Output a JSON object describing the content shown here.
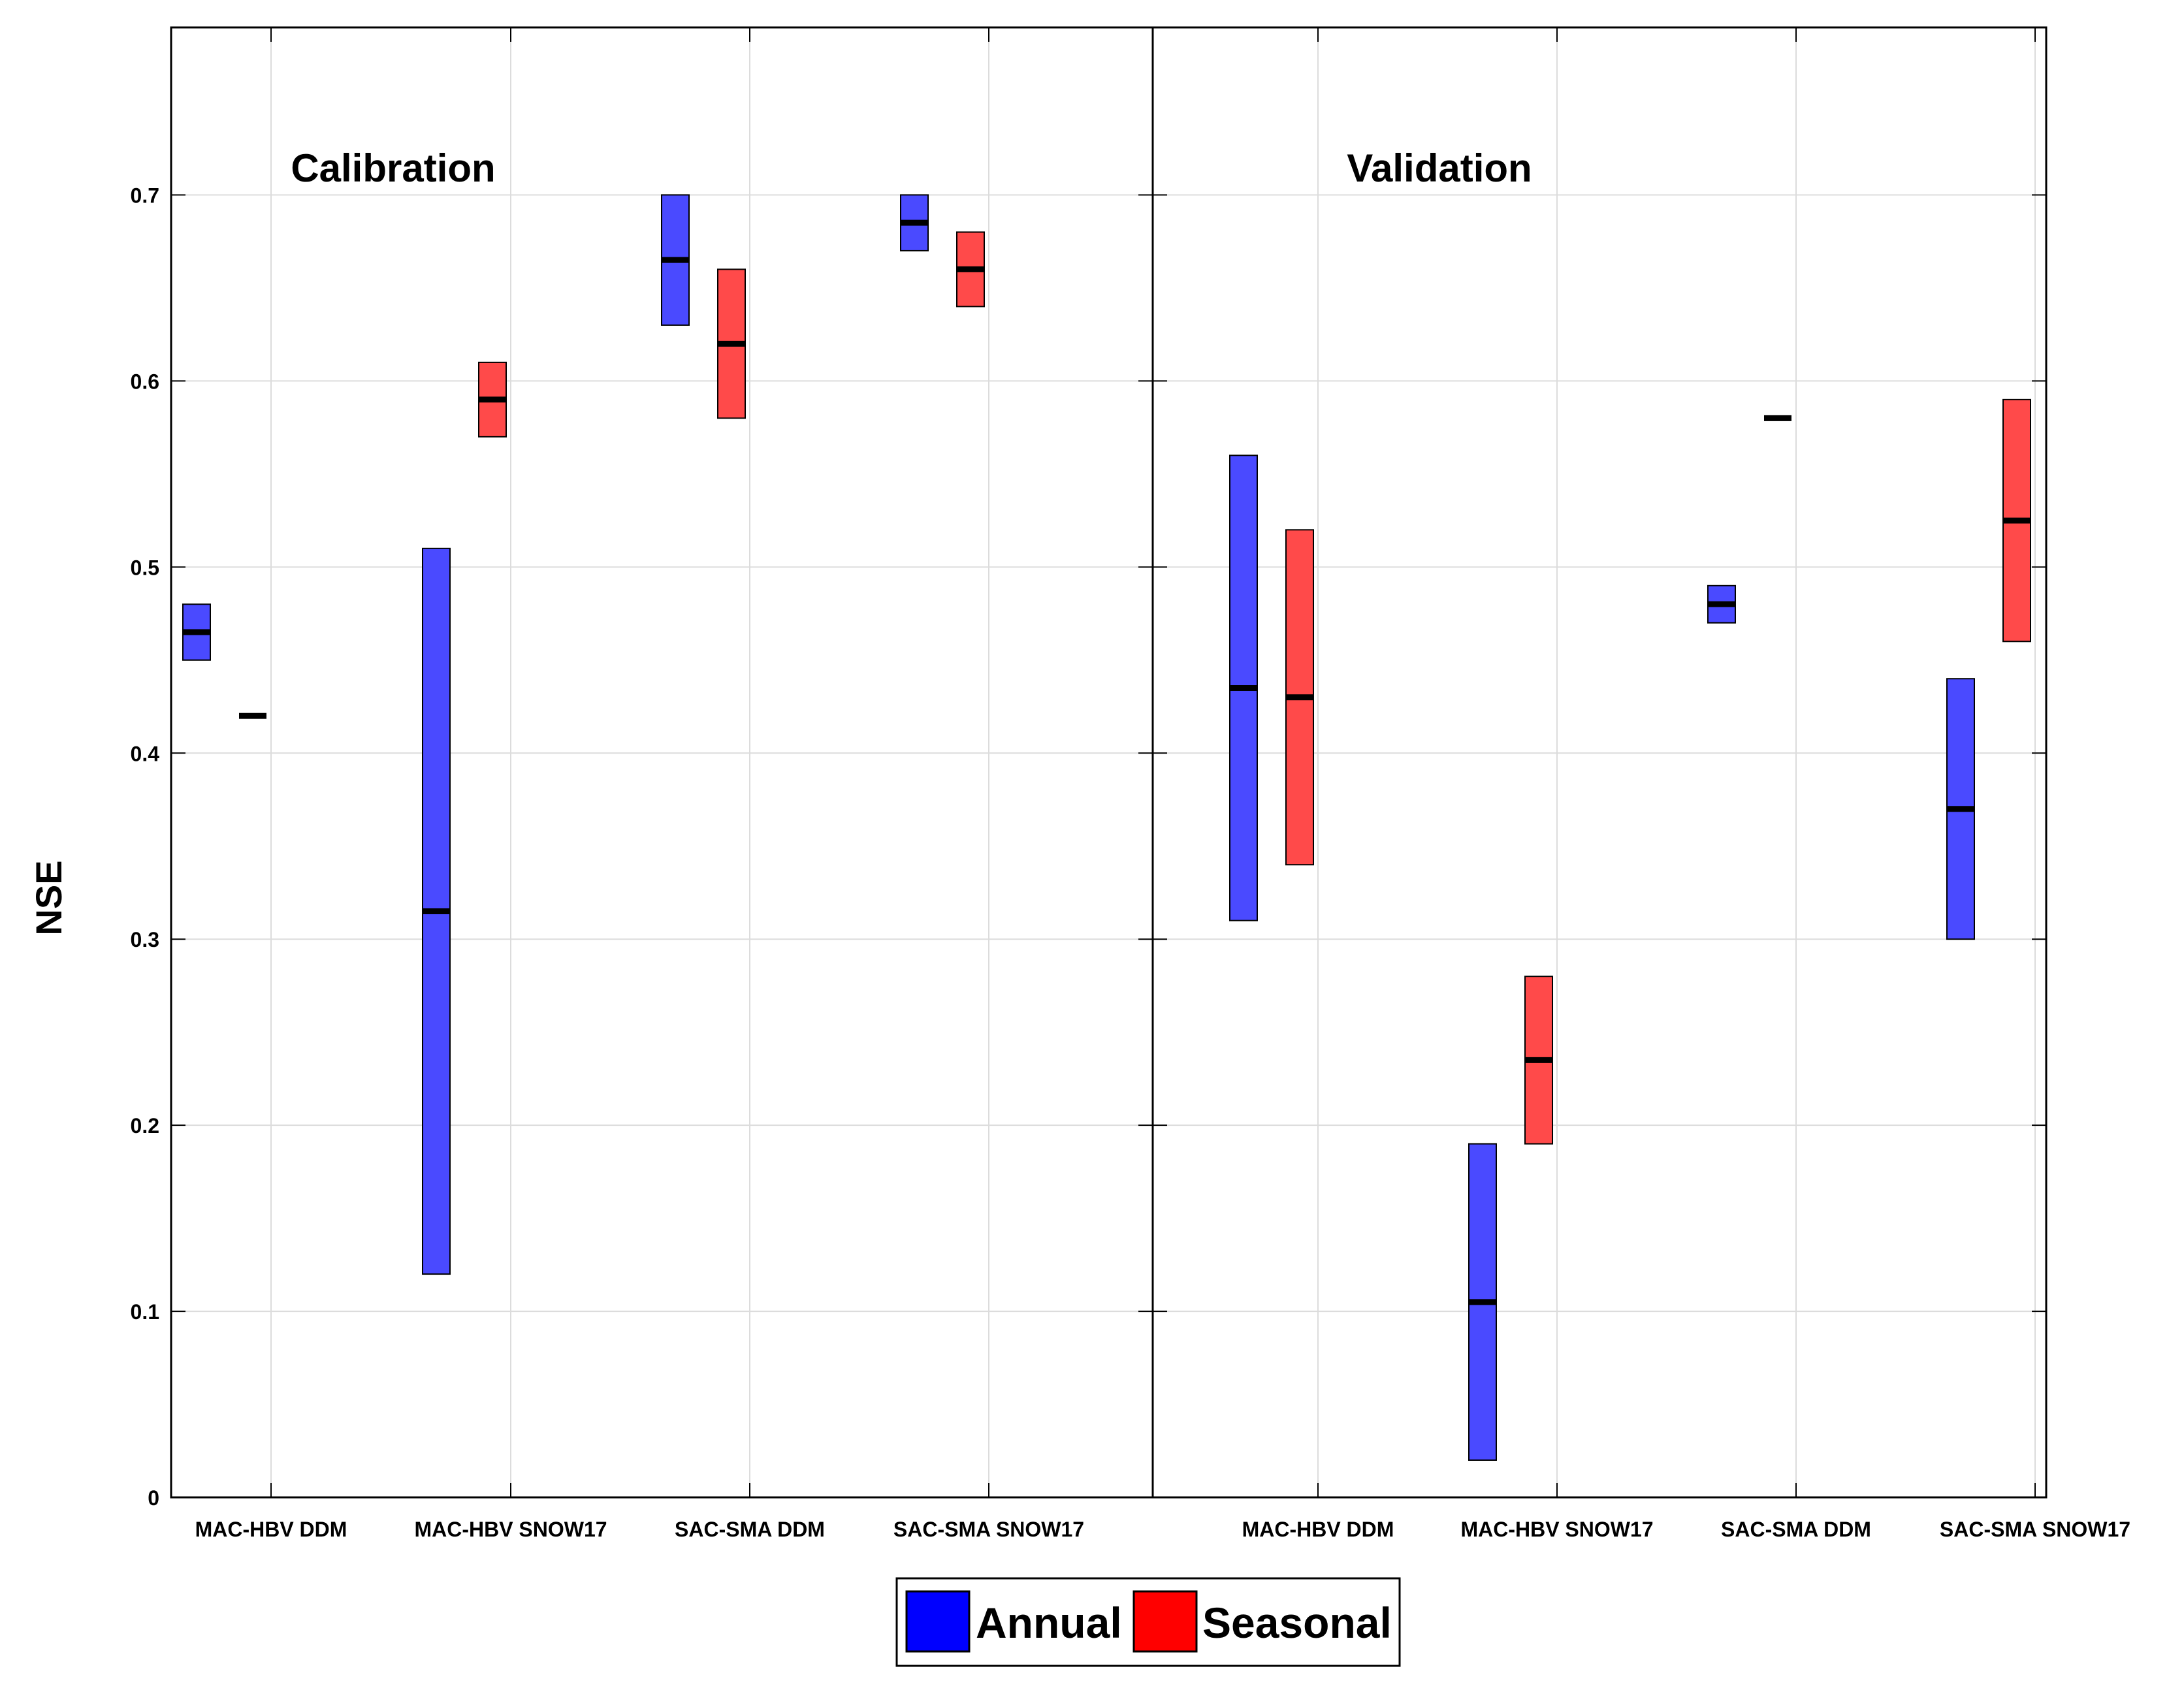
{
  "chart_data": {
    "type": "range-bar",
    "ylabel": "NSE",
    "ylim": [
      0,
      0.79
    ],
    "yticks": [
      {
        "value": 0,
        "label": "0"
      },
      {
        "value": 0.1,
        "label": "0.1"
      },
      {
        "value": 0.2,
        "label": "0.2"
      },
      {
        "value": 0.3,
        "label": "0.3"
      },
      {
        "value": 0.4,
        "label": "0.4"
      },
      {
        "value": 0.5,
        "label": "0.5"
      },
      {
        "value": 0.6,
        "label": "0.6"
      },
      {
        "value": 0.7,
        "label": "0.7"
      }
    ],
    "categories": [
      "MAC-HBV DDM",
      "MAC-HBV SNOW17",
      "SAC-SMA DDM",
      "SAC-SMA SNOW17"
    ],
    "legend": [
      {
        "name": "Annual",
        "color": "#0000ff"
      },
      {
        "name": "Seasonal",
        "color": "#ff0000"
      }
    ],
    "colors": {
      "Annual": "#4a4aff",
      "Seasonal": "#ff4a4a"
    },
    "panels": [
      {
        "title": "Calibration",
        "series": [
          {
            "name": "Annual",
            "min": [
              0.45,
              0.12,
              0.63,
              0.67
            ],
            "median": [
              0.465,
              0.315,
              0.665,
              0.685
            ],
            "max": [
              0.48,
              0.51,
              0.7,
              0.7
            ]
          },
          {
            "name": "Seasonal",
            "min": [
              0.42,
              0.57,
              0.58,
              0.64
            ],
            "median": [
              0.42,
              0.59,
              0.62,
              0.66
            ],
            "max": [
              0.42,
              0.61,
              0.66,
              0.68
            ]
          }
        ]
      },
      {
        "title": "Validation",
        "series": [
          {
            "name": "Annual",
            "min": [
              0.31,
              0.02,
              0.47,
              0.3
            ],
            "median": [
              0.435,
              0.105,
              0.48,
              0.37
            ],
            "max": [
              0.56,
              0.19,
              0.49,
              0.44
            ]
          },
          {
            "name": "Seasonal",
            "min": [
              0.34,
              0.19,
              0.58,
              0.46
            ],
            "median": [
              0.43,
              0.235,
              0.58,
              0.525
            ],
            "max": [
              0.52,
              0.28,
              0.58,
              0.59
            ]
          }
        ]
      }
    ]
  }
}
